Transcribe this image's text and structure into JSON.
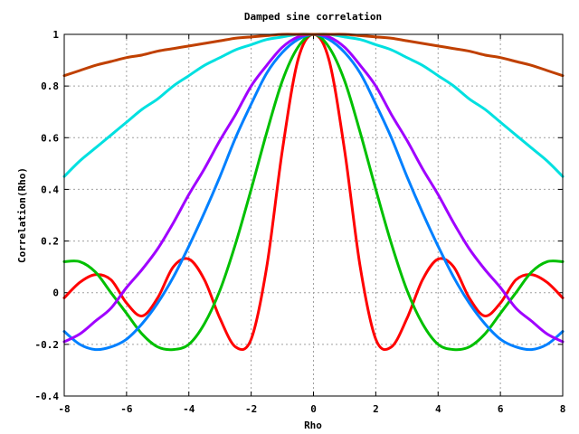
{
  "chart_data": {
    "type": "line",
    "title": "Damped sine correlation",
    "xlabel": "Rho",
    "ylabel": "Correlation(Rho)",
    "xlim": [
      -8,
      8
    ],
    "ylim": [
      -0.4,
      1
    ],
    "xticks": [
      -8,
      -6,
      -4,
      -2,
      0,
      2,
      4,
      6,
      8
    ],
    "yticks": [
      -0.4,
      -0.2,
      0,
      0.2,
      0.4,
      0.6,
      0.8,
      1
    ],
    "xtick_labels": [
      "-8",
      "-6",
      "-4",
      "-2",
      "0",
      "2",
      "4",
      "6",
      "8"
    ],
    "ytick_labels": [
      "-0.4",
      "-0.2",
      "0",
      "0.2",
      "0.4",
      "0.6",
      "0.8",
      "1"
    ],
    "grid": true,
    "legend": "none",
    "series": [
      {
        "color": "#ff0000",
        "x": [
          -8,
          -7.5,
          -7,
          -6.5,
          -6,
          -5.5,
          -5,
          -4.5,
          -4,
          -3.5,
          -3,
          -2.5,
          -2,
          -1.5,
          -1,
          -0.5,
          0,
          0.5,
          1,
          1.5,
          2,
          2.5,
          3,
          3.5,
          4,
          4.5,
          5,
          5.5,
          6,
          6.5,
          7,
          7.5,
          8
        ],
        "y": [
          -0.02,
          0.04,
          0.07,
          0.05,
          -0.04,
          -0.09,
          -0.02,
          0.1,
          0.13,
          0.05,
          -0.1,
          -0.21,
          -0.18,
          0.1,
          0.55,
          0.9,
          1.0,
          0.9,
          0.55,
          0.1,
          -0.18,
          -0.21,
          -0.1,
          0.05,
          0.13,
          0.1,
          -0.02,
          -0.09,
          -0.04,
          0.05,
          0.07,
          0.04,
          -0.02
        ]
      },
      {
        "color": "#00c000",
        "x": [
          -8,
          -7.5,
          -7,
          -6.5,
          -6,
          -5.5,
          -5,
          -4.5,
          -4,
          -3.5,
          -3,
          -2.5,
          -2,
          -1.5,
          -1,
          -0.5,
          0,
          0.5,
          1,
          1.5,
          2,
          2.5,
          3,
          3.5,
          4,
          4.5,
          5,
          5.5,
          6,
          6.5,
          7,
          7.5,
          8
        ],
        "y": [
          0.12,
          0.12,
          0.08,
          0.0,
          -0.08,
          -0.16,
          -0.21,
          -0.22,
          -0.2,
          -0.12,
          0.01,
          0.19,
          0.4,
          0.62,
          0.82,
          0.95,
          1.0,
          0.95,
          0.82,
          0.62,
          0.4,
          0.19,
          0.01,
          -0.12,
          -0.2,
          -0.22,
          -0.21,
          -0.16,
          -0.08,
          0.0,
          0.08,
          0.12,
          0.12
        ]
      },
      {
        "color": "#0080ff",
        "x": [
          -8,
          -7.5,
          -7,
          -6.5,
          -6,
          -5.5,
          -5,
          -4.5,
          -4,
          -3.5,
          -3,
          -2.5,
          -2,
          -1.5,
          -1,
          -0.5,
          0,
          0.5,
          1,
          1.5,
          2,
          2.5,
          3,
          3.5,
          4,
          4.5,
          5,
          5.5,
          6,
          6.5,
          7,
          7.5,
          8
        ],
        "y": [
          -0.15,
          -0.2,
          -0.22,
          -0.21,
          -0.18,
          -0.12,
          -0.04,
          0.06,
          0.18,
          0.31,
          0.45,
          0.6,
          0.73,
          0.85,
          0.93,
          0.98,
          1.0,
          0.98,
          0.93,
          0.85,
          0.73,
          0.6,
          0.45,
          0.31,
          0.18,
          0.06,
          -0.04,
          -0.12,
          -0.18,
          -0.21,
          -0.22,
          -0.2,
          -0.15
        ]
      },
      {
        "color": "#a000ff",
        "x": [
          -8,
          -7.5,
          -7,
          -6.5,
          -6,
          -5.5,
          -5,
          -4.5,
          -4,
          -3.5,
          -3,
          -2.5,
          -2,
          -1.5,
          -1,
          -0.5,
          0,
          0.5,
          1,
          1.5,
          2,
          2.5,
          3,
          3.5,
          4,
          4.5,
          5,
          5.5,
          6,
          6.5,
          7,
          7.5,
          8
        ],
        "y": [
          -0.19,
          -0.16,
          -0.11,
          -0.06,
          0.02,
          0.09,
          0.17,
          0.27,
          0.38,
          0.48,
          0.59,
          0.69,
          0.8,
          0.88,
          0.95,
          0.99,
          1.0,
          0.99,
          0.95,
          0.88,
          0.8,
          0.69,
          0.59,
          0.48,
          0.38,
          0.27,
          0.17,
          0.09,
          0.02,
          -0.06,
          -0.11,
          -0.16,
          -0.19
        ]
      },
      {
        "color": "#00e0e0",
        "x": [
          -8,
          -7.5,
          -7,
          -6.5,
          -6,
          -5.5,
          -5,
          -4.5,
          -4,
          -3.5,
          -3,
          -2.5,
          -2,
          -1.5,
          -1,
          -0.5,
          0,
          0.5,
          1,
          1.5,
          2,
          2.5,
          3,
          3.5,
          4,
          4.5,
          5,
          5.5,
          6,
          6.5,
          7,
          7.5,
          8
        ],
        "y": [
          0.45,
          0.51,
          0.56,
          0.61,
          0.66,
          0.71,
          0.75,
          0.8,
          0.84,
          0.88,
          0.91,
          0.94,
          0.96,
          0.98,
          0.99,
          1.0,
          1.0,
          1.0,
          0.99,
          0.98,
          0.96,
          0.94,
          0.91,
          0.88,
          0.84,
          0.8,
          0.75,
          0.71,
          0.66,
          0.61,
          0.56,
          0.51,
          0.45
        ]
      },
      {
        "color": "#c04000",
        "x": [
          -8,
          -7.5,
          -7,
          -6.5,
          -6,
          -5.5,
          -5,
          -4.5,
          -4,
          -3.5,
          -3,
          -2.5,
          -2,
          -1.5,
          -1,
          -0.5,
          0,
          0.5,
          1,
          1.5,
          2,
          2.5,
          3,
          3.5,
          4,
          4.5,
          5,
          5.5,
          6,
          6.5,
          7,
          7.5,
          8
        ],
        "y": [
          0.84,
          0.86,
          0.88,
          0.895,
          0.91,
          0.92,
          0.935,
          0.945,
          0.955,
          0.965,
          0.975,
          0.985,
          0.99,
          0.995,
          1.0,
          1.0,
          1.0,
          1.0,
          1.0,
          0.995,
          0.99,
          0.985,
          0.975,
          0.965,
          0.955,
          0.945,
          0.935,
          0.92,
          0.91,
          0.895,
          0.88,
          0.86,
          0.84
        ]
      }
    ]
  }
}
